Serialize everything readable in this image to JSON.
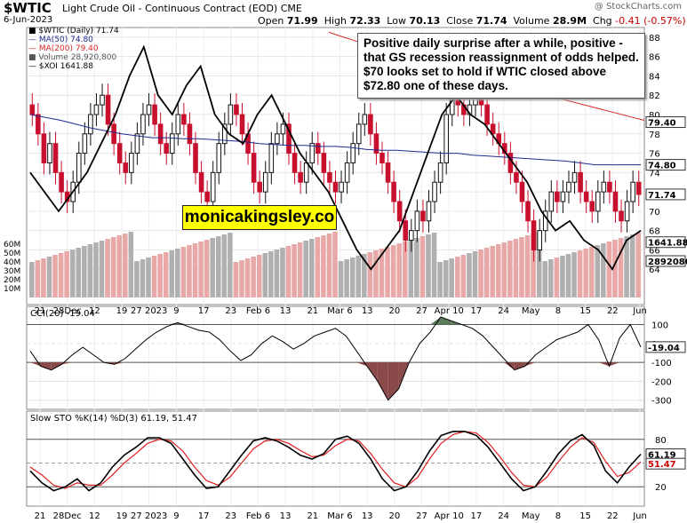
{
  "header": {
    "symbol": "$WTIC",
    "description": "Light Crude Oil - Continuous Contract (EOD)",
    "exchange": "CME",
    "date": "6-Jun-2023",
    "watermark": "@ StockCharts.com",
    "open_label": "Open",
    "open": "71.99",
    "high_label": "High",
    "high": "72.33",
    "low_label": "Low",
    "low": "70.13",
    "close_label": "Close",
    "close": "71.74",
    "volume_label": "Volume",
    "volume": "28.9M",
    "chg_label": "Chg",
    "chg": "-0.41 (-0.57%)"
  },
  "legend": {
    "price": "$WTIC (Daily) 71.74",
    "ma50": "MA(50) 74.80",
    "ma200": "MA(200) 79.40",
    "volume": "Volume 28,920,800",
    "xoi": "$XOI 1641.88"
  },
  "annotation": "Positive daily surprise after a while, positive - that GS recession reassignment of odds helped. $70 looks set to hold if WTIC closed above $72.80 one of these days.",
  "brand": "monicakingsley.co",
  "colors": {
    "up": "#111111",
    "down": "#c8102e",
    "ma50": "#1f2a8c",
    "ma200": "#d62828",
    "vol_up": "#b0b0b0",
    "vol_down": "#e8a8a8",
    "cci_fill": "#8b4a4a",
    "cci_pos_fill": "#5a7a5a"
  },
  "chart_data": [
    {
      "type": "line",
      "panel": "price",
      "y_range": [
        62,
        89
      ],
      "y_ticks": [
        "64",
        "66",
        "68",
        "70",
        "72",
        "74",
        "76",
        "78",
        "80",
        "82",
        "84",
        "86",
        "88"
      ],
      "x_ticks": [
        "21",
        "28Dec",
        "12",
        "19",
        "27 2023",
        "9",
        "17",
        "23",
        "Feb 6",
        "13",
        "21",
        "Mar 6",
        "13",
        "20",
        "27",
        "Apr 10",
        "17",
        "24",
        "May",
        "8",
        "15",
        "22",
        "Jun"
      ],
      "volume_ticks": [
        "10M",
        "20M",
        "30M",
        "40M",
        "50M",
        "60M"
      ],
      "last_labels": {
        "ma50": "74.80",
        "ma200": "79.40",
        "close": "71.74",
        "xoi": "1641.88",
        "volume": "28920800"
      },
      "close": [
        80,
        78,
        75,
        77,
        74,
        72,
        71,
        73,
        76,
        78,
        80,
        81,
        82,
        79,
        77,
        75,
        74,
        76,
        78,
        80,
        81,
        79,
        77,
        76,
        78,
        80,
        79,
        77,
        74,
        72,
        71,
        74,
        77,
        79,
        81,
        80,
        78,
        76,
        73,
        72,
        74,
        77,
        78,
        79,
        76,
        74,
        73,
        75,
        77,
        76,
        74,
        73,
        72,
        73,
        75,
        77,
        79,
        80,
        78,
        76,
        75,
        73,
        71,
        69,
        67,
        68,
        70,
        69,
        71,
        73,
        75,
        80,
        82,
        81,
        80,
        81,
        83,
        81,
        79,
        78,
        77,
        76,
        74,
        73,
        71,
        69,
        66,
        68,
        70,
        72,
        71,
        72,
        73,
        74,
        72,
        71,
        70,
        72,
        73,
        72,
        70,
        69,
        71,
        73,
        71.74
      ],
      "ma50": [
        80,
        79.7,
        79.4,
        79,
        78.6,
        78.3,
        78,
        77.8,
        77.6,
        77.6,
        77.5,
        77.5,
        77.4,
        77.3,
        77.2,
        77,
        76.9,
        76.8,
        76.8,
        76.7,
        76.7,
        76.6,
        76.4,
        76.3,
        76.3,
        76.2,
        76.1,
        76,
        76,
        75.8,
        75.7,
        75.6,
        75.5,
        75.4,
        75.3,
        75.2,
        75,
        74.8,
        74.8,
        74.8,
        74.8
      ],
      "ma200": [
        88.5,
        88,
        87.5,
        87,
        86.5,
        86,
        85.5,
        85,
        84.6,
        84.2,
        83.8,
        83.4,
        83,
        82.6,
        82.2,
        81.8,
        81.4,
        81,
        80.6,
        80.2,
        79.8,
        79.4
      ],
      "xoi": [
        74,
        72,
        70,
        72,
        74,
        77,
        80,
        84,
        87,
        82,
        80,
        83,
        85,
        80,
        78,
        77,
        80,
        82,
        79,
        76,
        74,
        72,
        69,
        66,
        64,
        66,
        68,
        72,
        76,
        80,
        82,
        80,
        79,
        77,
        75,
        73,
        70,
        68,
        69,
        67,
        66,
        64,
        67,
        68
      ]
    },
    {
      "type": "line",
      "panel": "cci",
      "title": "CCI(20) -19.04",
      "y_ticks": [
        "100",
        "0",
        "-100",
        "-200",
        "-300"
      ],
      "y_range": [
        -320,
        140
      ],
      "last_value": "-19.04",
      "values": [
        -40,
        -120,
        -140,
        -110,
        -60,
        -20,
        -60,
        -100,
        -110,
        -80,
        -30,
        20,
        60,
        90,
        110,
        90,
        70,
        60,
        20,
        -40,
        -90,
        -60,
        0,
        40,
        10,
        -30,
        0,
        40,
        60,
        80,
        40,
        -40,
        -120,
        -200,
        -300,
        -240,
        -100,
        0,
        60,
        140,
        120,
        100,
        80,
        40,
        -20,
        -80,
        -140,
        -120,
        -60,
        -20,
        20,
        40,
        60,
        100,
        20,
        -120,
        30,
        100,
        -19.04
      ]
    },
    {
      "type": "line",
      "panel": "stochastic",
      "title": "Slow STO %K(14) %D(3) 61.19, 51.47",
      "y_ticks": [
        "80",
        "50",
        "20"
      ],
      "y_range": [
        0,
        100
      ],
      "last_k": "61.19",
      "last_d": "51.47",
      "k": [
        40,
        25,
        15,
        20,
        30,
        15,
        25,
        45,
        60,
        70,
        82,
        82,
        75,
        55,
        35,
        18,
        20,
        40,
        60,
        78,
        82,
        78,
        70,
        60,
        55,
        62,
        80,
        84,
        75,
        55,
        30,
        15,
        20,
        40,
        65,
        85,
        90,
        90,
        85,
        70,
        50,
        30,
        15,
        20,
        40,
        62,
        78,
        86,
        72,
        40,
        25,
        45,
        61.19
      ],
      "d": [
        45,
        35,
        22,
        18,
        25,
        22,
        22,
        35,
        50,
        62,
        75,
        80,
        78,
        65,
        45,
        28,
        22,
        32,
        50,
        68,
        78,
        80,
        75,
        66,
        58,
        60,
        72,
        80,
        78,
        62,
        42,
        25,
        20,
        32,
        55,
        75,
        86,
        90,
        88,
        76,
        58,
        38,
        22,
        20,
        32,
        52,
        70,
        82,
        76,
        52,
        33,
        38,
        51.47
      ]
    }
  ]
}
